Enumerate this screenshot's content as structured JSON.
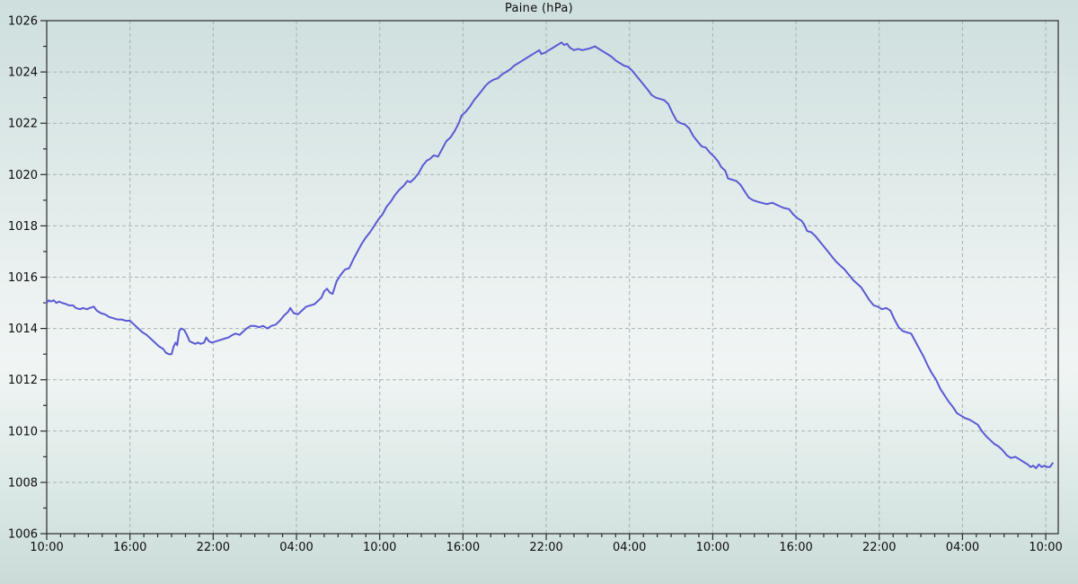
{
  "title": "Paine (hPa)",
  "colors": {
    "line": "#5a5ad4",
    "grid": "#a9b2b1",
    "frame": "#2a2a2a",
    "text": "#0d0d0d",
    "background_top": "#cedfde",
    "background_middle": "#f0f5f4",
    "background_bottom": "#cadbd8"
  },
  "chart_data": {
    "type": "line",
    "title": "Paine (hPa)",
    "xlabel": "",
    "ylabel": "",
    "grid": true,
    "legend_position": "none",
    "x_unit": "hours from first sample (10:00)",
    "xlim": [
      0,
      72.9
    ],
    "ylim": [
      1006,
      1026
    ],
    "x_major_tick_hours": 6,
    "x_minor_tick_hours": 1,
    "y_major_tick": 2,
    "y_minor_tick": 1,
    "x_tick_labels": [
      "10:00",
      "16:00",
      "22:00",
      "04:00",
      "10:00",
      "16:00",
      "22:00",
      "04:00",
      "10:00",
      "16:00",
      "22:00",
      "04:00",
      "10:00"
    ],
    "y_tick_labels": [
      "1006",
      "1008",
      "1010",
      "1012",
      "1014",
      "1016",
      "1018",
      "1020",
      "1022",
      "1024",
      "1026"
    ],
    "series": [
      {
        "name": "Paine",
        "color": "#5a5ad4",
        "points": [
          [
            0.0,
            1015.0
          ],
          [
            0.15,
            1015.1
          ],
          [
            0.3,
            1015.05
          ],
          [
            0.5,
            1015.1
          ],
          [
            0.7,
            1015.0
          ],
          [
            0.9,
            1015.05
          ],
          [
            1.1,
            1015.0
          ],
          [
            1.4,
            1014.95
          ],
          [
            1.6,
            1014.9
          ],
          [
            1.9,
            1014.9
          ],
          [
            2.1,
            1014.8
          ],
          [
            2.4,
            1014.75
          ],
          [
            2.6,
            1014.8
          ],
          [
            2.9,
            1014.75
          ],
          [
            3.1,
            1014.8
          ],
          [
            3.4,
            1014.85
          ],
          [
            3.6,
            1014.7
          ],
          [
            3.9,
            1014.6
          ],
          [
            4.2,
            1014.55
          ],
          [
            4.5,
            1014.45
          ],
          [
            4.8,
            1014.4
          ],
          [
            5.1,
            1014.35
          ],
          [
            5.4,
            1014.35
          ],
          [
            5.7,
            1014.3
          ],
          [
            6.0,
            1014.3
          ],
          [
            6.3,
            1014.15
          ],
          [
            6.6,
            1014.0
          ],
          [
            6.9,
            1013.85
          ],
          [
            7.2,
            1013.75
          ],
          [
            7.5,
            1013.6
          ],
          [
            7.8,
            1013.45
          ],
          [
            8.1,
            1013.3
          ],
          [
            8.4,
            1013.2
          ],
          [
            8.6,
            1013.05
          ],
          [
            8.8,
            1013.0
          ],
          [
            9.0,
            1013.0
          ],
          [
            9.15,
            1013.3
          ],
          [
            9.3,
            1013.45
          ],
          [
            9.4,
            1013.35
          ],
          [
            9.55,
            1013.9
          ],
          [
            9.7,
            1014.0
          ],
          [
            9.9,
            1013.95
          ],
          [
            10.1,
            1013.75
          ],
          [
            10.3,
            1013.5
          ],
          [
            10.5,
            1013.45
          ],
          [
            10.7,
            1013.4
          ],
          [
            10.9,
            1013.45
          ],
          [
            11.1,
            1013.4
          ],
          [
            11.35,
            1013.45
          ],
          [
            11.5,
            1013.65
          ],
          [
            11.7,
            1013.5
          ],
          [
            11.9,
            1013.45
          ],
          [
            12.2,
            1013.5
          ],
          [
            12.5,
            1013.55
          ],
          [
            12.8,
            1013.6
          ],
          [
            13.1,
            1013.65
          ],
          [
            13.4,
            1013.75
          ],
          [
            13.6,
            1013.8
          ],
          [
            13.9,
            1013.75
          ],
          [
            14.1,
            1013.85
          ],
          [
            14.4,
            1014.0
          ],
          [
            14.7,
            1014.1
          ],
          [
            15.0,
            1014.1
          ],
          [
            15.3,
            1014.05
          ],
          [
            15.6,
            1014.1
          ],
          [
            15.9,
            1014.0
          ],
          [
            16.2,
            1014.1
          ],
          [
            16.5,
            1014.15
          ],
          [
            16.8,
            1014.3
          ],
          [
            17.1,
            1014.5
          ],
          [
            17.4,
            1014.65
          ],
          [
            17.55,
            1014.8
          ],
          [
            17.8,
            1014.6
          ],
          [
            18.1,
            1014.55
          ],
          [
            18.4,
            1014.7
          ],
          [
            18.7,
            1014.85
          ],
          [
            19.0,
            1014.9
          ],
          [
            19.3,
            1014.95
          ],
          [
            19.5,
            1015.05
          ],
          [
            19.8,
            1015.2
          ],
          [
            20.0,
            1015.45
          ],
          [
            20.2,
            1015.55
          ],
          [
            20.4,
            1015.4
          ],
          [
            20.6,
            1015.35
          ],
          [
            20.9,
            1015.85
          ],
          [
            21.2,
            1016.1
          ],
          [
            21.5,
            1016.3
          ],
          [
            21.8,
            1016.35
          ],
          [
            22.1,
            1016.7
          ],
          [
            22.4,
            1017.0
          ],
          [
            22.7,
            1017.3
          ],
          [
            23.0,
            1017.55
          ],
          [
            23.3,
            1017.75
          ],
          [
            23.6,
            1018.0
          ],
          [
            23.9,
            1018.25
          ],
          [
            24.2,
            1018.45
          ],
          [
            24.5,
            1018.75
          ],
          [
            24.8,
            1018.95
          ],
          [
            25.1,
            1019.2
          ],
          [
            25.4,
            1019.4
          ],
          [
            25.7,
            1019.55
          ],
          [
            26.0,
            1019.75
          ],
          [
            26.2,
            1019.7
          ],
          [
            26.5,
            1019.85
          ],
          [
            26.8,
            1020.05
          ],
          [
            27.1,
            1020.35
          ],
          [
            27.4,
            1020.55
          ],
          [
            27.6,
            1020.6
          ],
          [
            27.9,
            1020.75
          ],
          [
            28.2,
            1020.7
          ],
          [
            28.5,
            1021.0
          ],
          [
            28.8,
            1021.3
          ],
          [
            29.1,
            1021.45
          ],
          [
            29.4,
            1021.7
          ],
          [
            29.7,
            1022.0
          ],
          [
            29.9,
            1022.3
          ],
          [
            30.2,
            1022.45
          ],
          [
            30.5,
            1022.65
          ],
          [
            30.8,
            1022.9
          ],
          [
            31.1,
            1023.1
          ],
          [
            31.4,
            1023.3
          ],
          [
            31.6,
            1023.45
          ],
          [
            31.9,
            1023.6
          ],
          [
            32.2,
            1023.7
          ],
          [
            32.5,
            1023.75
          ],
          [
            32.8,
            1023.9
          ],
          [
            33.1,
            1024.0
          ],
          [
            33.4,
            1024.1
          ],
          [
            33.7,
            1024.25
          ],
          [
            34.0,
            1024.35
          ],
          [
            34.3,
            1024.45
          ],
          [
            34.6,
            1024.55
          ],
          [
            34.9,
            1024.65
          ],
          [
            35.2,
            1024.75
          ],
          [
            35.5,
            1024.85
          ],
          [
            35.65,
            1024.7
          ],
          [
            35.9,
            1024.75
          ],
          [
            36.2,
            1024.85
          ],
          [
            36.5,
            1024.95
          ],
          [
            36.8,
            1025.05
          ],
          [
            37.1,
            1025.15
          ],
          [
            37.3,
            1025.05
          ],
          [
            37.5,
            1025.1
          ],
          [
            37.7,
            1024.95
          ],
          [
            38.0,
            1024.85
          ],
          [
            38.3,
            1024.9
          ],
          [
            38.6,
            1024.85
          ],
          [
            39.0,
            1024.9
          ],
          [
            39.3,
            1024.95
          ],
          [
            39.5,
            1025.0
          ],
          [
            39.8,
            1024.9
          ],
          [
            40.1,
            1024.8
          ],
          [
            40.4,
            1024.7
          ],
          [
            40.7,
            1024.6
          ],
          [
            41.0,
            1024.45
          ],
          [
            41.3,
            1024.35
          ],
          [
            41.6,
            1024.25
          ],
          [
            41.9,
            1024.2
          ],
          [
            42.2,
            1024.05
          ],
          [
            42.5,
            1023.85
          ],
          [
            42.8,
            1023.65
          ],
          [
            43.1,
            1023.45
          ],
          [
            43.4,
            1023.25
          ],
          [
            43.6,
            1023.1
          ],
          [
            43.9,
            1023.0
          ],
          [
            44.2,
            1022.95
          ],
          [
            44.5,
            1022.9
          ],
          [
            44.8,
            1022.75
          ],
          [
            45.1,
            1022.4
          ],
          [
            45.4,
            1022.1
          ],
          [
            45.7,
            1022.0
          ],
          [
            46.0,
            1021.95
          ],
          [
            46.3,
            1021.8
          ],
          [
            46.6,
            1021.5
          ],
          [
            46.9,
            1021.3
          ],
          [
            47.2,
            1021.1
          ],
          [
            47.5,
            1021.05
          ],
          [
            47.8,
            1020.85
          ],
          [
            48.1,
            1020.7
          ],
          [
            48.4,
            1020.5
          ],
          [
            48.6,
            1020.3
          ],
          [
            48.9,
            1020.15
          ],
          [
            49.1,
            1019.85
          ],
          [
            49.4,
            1019.8
          ],
          [
            49.7,
            1019.75
          ],
          [
            50.0,
            1019.6
          ],
          [
            50.3,
            1019.35
          ],
          [
            50.6,
            1019.1
          ],
          [
            50.9,
            1019.0
          ],
          [
            51.2,
            1018.95
          ],
          [
            51.5,
            1018.9
          ],
          [
            51.9,
            1018.85
          ],
          [
            52.3,
            1018.9
          ],
          [
            52.7,
            1018.8
          ],
          [
            53.1,
            1018.7
          ],
          [
            53.5,
            1018.65
          ],
          [
            53.8,
            1018.45
          ],
          [
            54.1,
            1018.3
          ],
          [
            54.4,
            1018.2
          ],
          [
            54.6,
            1018.05
          ],
          [
            54.8,
            1017.8
          ],
          [
            55.1,
            1017.75
          ],
          [
            55.4,
            1017.6
          ],
          [
            55.7,
            1017.4
          ],
          [
            56.0,
            1017.2
          ],
          [
            56.3,
            1017.0
          ],
          [
            56.6,
            1016.8
          ],
          [
            56.9,
            1016.6
          ],
          [
            57.2,
            1016.45
          ],
          [
            57.5,
            1016.3
          ],
          [
            57.8,
            1016.1
          ],
          [
            58.1,
            1015.9
          ],
          [
            58.4,
            1015.75
          ],
          [
            58.7,
            1015.6
          ],
          [
            59.0,
            1015.35
          ],
          [
            59.3,
            1015.1
          ],
          [
            59.6,
            1014.9
          ],
          [
            59.9,
            1014.85
          ],
          [
            60.2,
            1014.75
          ],
          [
            60.5,
            1014.8
          ],
          [
            60.8,
            1014.7
          ],
          [
            61.1,
            1014.35
          ],
          [
            61.4,
            1014.05
          ],
          [
            61.7,
            1013.9
          ],
          [
            62.0,
            1013.85
          ],
          [
            62.3,
            1013.8
          ],
          [
            62.6,
            1013.5
          ],
          [
            62.9,
            1013.2
          ],
          [
            63.2,
            1012.9
          ],
          [
            63.5,
            1012.55
          ],
          [
            63.8,
            1012.25
          ],
          [
            64.1,
            1012.0
          ],
          [
            64.4,
            1011.65
          ],
          [
            64.7,
            1011.4
          ],
          [
            65.0,
            1011.15
          ],
          [
            65.3,
            1010.95
          ],
          [
            65.6,
            1010.7
          ],
          [
            65.9,
            1010.6
          ],
          [
            66.2,
            1010.5
          ],
          [
            66.5,
            1010.45
          ],
          [
            66.8,
            1010.35
          ],
          [
            67.1,
            1010.25
          ],
          [
            67.4,
            1010.0
          ],
          [
            67.7,
            1009.8
          ],
          [
            68.0,
            1009.65
          ],
          [
            68.3,
            1009.5
          ],
          [
            68.6,
            1009.4
          ],
          [
            68.9,
            1009.25
          ],
          [
            69.2,
            1009.05
          ],
          [
            69.5,
            1008.95
          ],
          [
            69.8,
            1009.0
          ],
          [
            70.1,
            1008.9
          ],
          [
            70.4,
            1008.8
          ],
          [
            70.7,
            1008.7
          ],
          [
            70.9,
            1008.6
          ],
          [
            71.1,
            1008.65
          ],
          [
            71.3,
            1008.55
          ],
          [
            71.5,
            1008.7
          ],
          [
            71.7,
            1008.6
          ],
          [
            71.9,
            1008.65
          ],
          [
            72.1,
            1008.6
          ],
          [
            72.3,
            1008.6
          ],
          [
            72.5,
            1008.75
          ]
        ]
      }
    ]
  }
}
